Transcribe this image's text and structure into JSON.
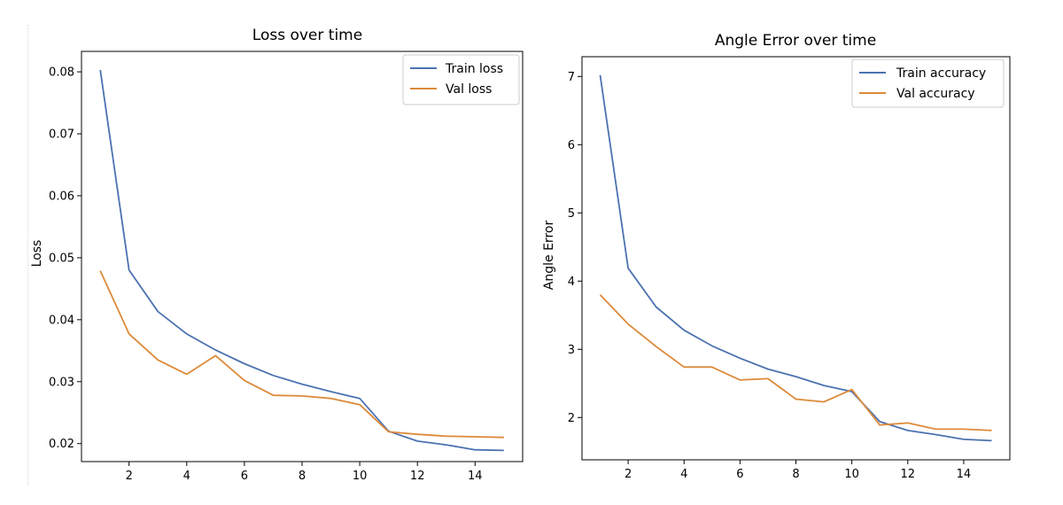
{
  "colors": {
    "train": "#4c72b0",
    "val": "#dd8a3a",
    "axis": "#000000"
  },
  "chart_data": [
    {
      "type": "line",
      "title": "Loss over time",
      "xlabel": "",
      "ylabel": "Loss",
      "grid": false,
      "legend_position": "top-right",
      "xlim": [
        0.35,
        15.65
      ],
      "ylim": [
        0.0171,
        0.0833
      ],
      "xticks": [
        2,
        4,
        6,
        8,
        10,
        12,
        14
      ],
      "yticks": [
        0.02,
        0.03,
        0.04,
        0.05,
        0.06,
        0.07,
        0.08
      ],
      "ytick_labels": [
        "0.02",
        "0.03",
        "0.04",
        "0.05",
        "0.06",
        "0.07",
        "0.08"
      ],
      "x": [
        1,
        2,
        3,
        4,
        5,
        6,
        7,
        8,
        9,
        10,
        11,
        12,
        13,
        14,
        15
      ],
      "series": [
        {
          "name": "Train loss",
          "color": "#4c72b0",
          "values": [
            0.0803,
            0.048,
            0.0413,
            0.0377,
            0.0351,
            0.0329,
            0.031,
            0.0296,
            0.0284,
            0.0273,
            0.022,
            0.0204,
            0.0198,
            0.019,
            0.0189
          ]
        },
        {
          "name": "Val loss",
          "color": "#dd8a3a",
          "values": [
            0.0479,
            0.0377,
            0.0335,
            0.0312,
            0.0342,
            0.0302,
            0.0278,
            0.0277,
            0.0273,
            0.0263,
            0.0219,
            0.0215,
            0.0212,
            0.0211,
            0.021
          ]
        }
      ]
    },
    {
      "type": "line",
      "title": "Angle Error over time",
      "xlabel": "",
      "ylabel": "Angle Error",
      "grid": false,
      "legend_position": "top-right",
      "xlim": [
        0.35,
        15.65
      ],
      "ylim": [
        1.38,
        7.29
      ],
      "xticks": [
        2,
        4,
        6,
        8,
        10,
        12,
        14
      ],
      "yticks": [
        2,
        3,
        4,
        5,
        6,
        7
      ],
      "ytick_labels": [
        "2",
        "3",
        "4",
        "5",
        "6",
        "7"
      ],
      "x": [
        1,
        2,
        3,
        4,
        5,
        6,
        7,
        8,
        9,
        10,
        11,
        12,
        13,
        14,
        15
      ],
      "series": [
        {
          "name": "Train accuracy",
          "color": "#4c72b0",
          "values": [
            7.02,
            4.19,
            3.62,
            3.28,
            3.05,
            2.87,
            2.71,
            2.6,
            2.47,
            2.38,
            1.94,
            1.81,
            1.75,
            1.68,
            1.66
          ]
        },
        {
          "name": "Val accuracy",
          "color": "#dd8a3a",
          "values": [
            3.8,
            3.37,
            3.04,
            2.74,
            2.74,
            2.55,
            2.57,
            2.27,
            2.23,
            2.41,
            1.89,
            1.92,
            1.83,
            1.83,
            1.81
          ]
        }
      ]
    }
  ]
}
